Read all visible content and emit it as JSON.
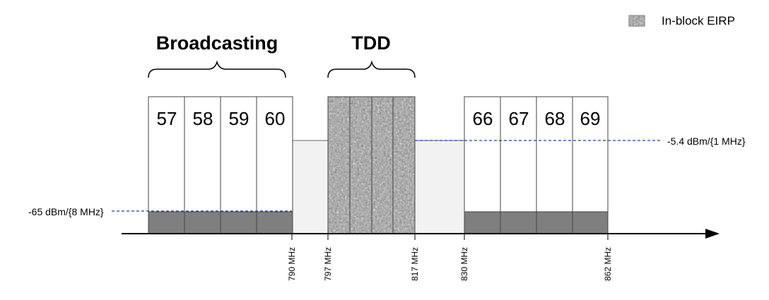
{
  "legend": {
    "label": "In-block EIRP"
  },
  "groups": {
    "broadcasting": "Broadcasting",
    "tdd": "TDD"
  },
  "channels_left": [
    "57",
    "58",
    "59",
    "60"
  ],
  "channels_right": [
    "66",
    "67",
    "68",
    "69"
  ],
  "levels": {
    "left": "-65 dBm/{8 MHz}",
    "right": "-5.4 dBm/{1 MHz}"
  },
  "frequencies": [
    "790 MHz",
    "797 MHz",
    "817 MHz",
    "830 MHz",
    "862 MHz"
  ],
  "colors": {
    "baseline_block": "#7f7f7f",
    "guard_band": "#f2f2f2",
    "tdd_texture": "#9a9a9a",
    "dashed_line": "#1f3f9f",
    "border": "#444444"
  }
}
